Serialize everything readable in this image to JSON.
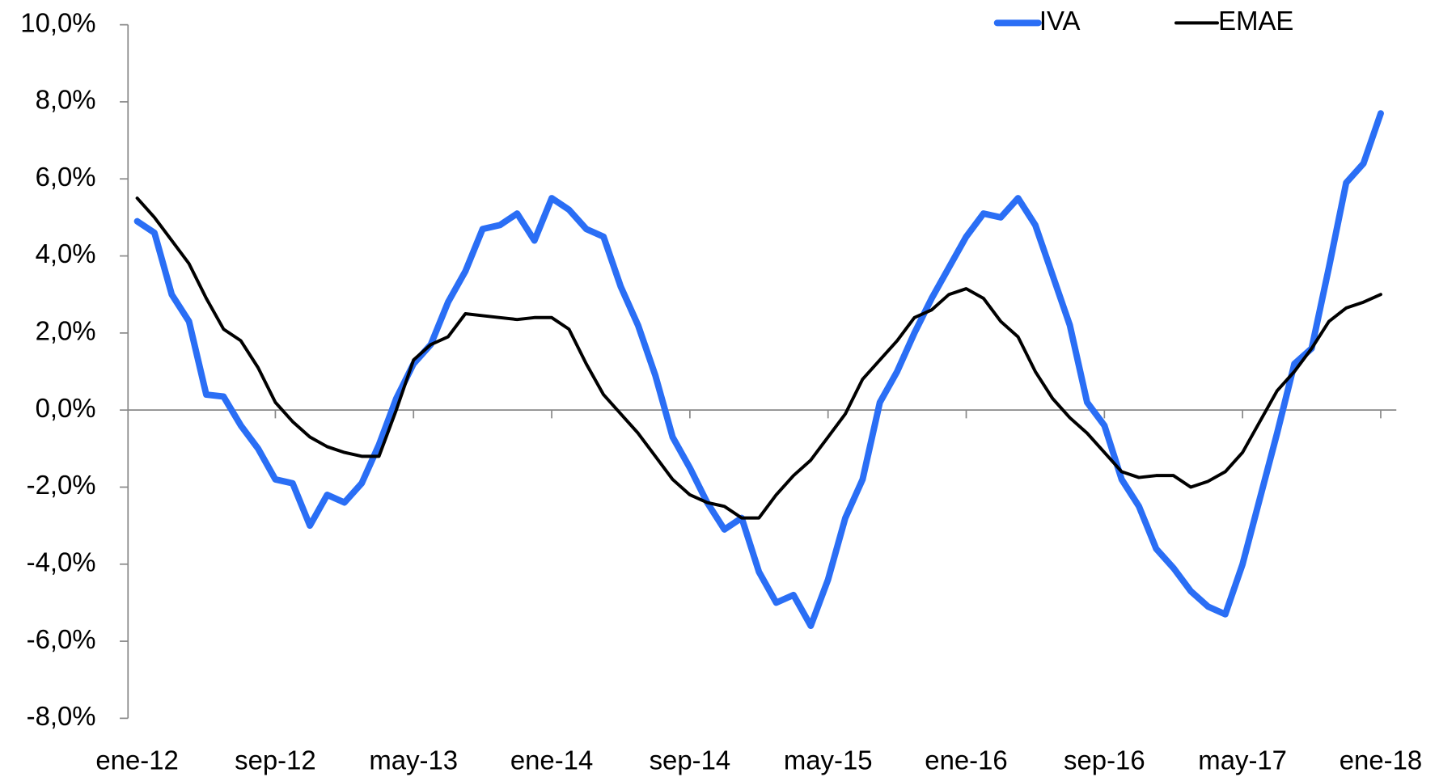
{
  "chart_data": {
    "type": "line",
    "categories": [
      "ene-12",
      null,
      null,
      null,
      null,
      null,
      null,
      null,
      "sep-12",
      null,
      null,
      null,
      null,
      null,
      null,
      null,
      "may-13",
      null,
      null,
      null,
      null,
      null,
      null,
      null,
      "ene-14",
      null,
      null,
      null,
      null,
      null,
      null,
      null,
      "sep-14",
      null,
      null,
      null,
      null,
      null,
      null,
      null,
      "may-15",
      null,
      null,
      null,
      null,
      null,
      null,
      null,
      "ene-16",
      null,
      null,
      null,
      null,
      null,
      null,
      null,
      "sep-16",
      null,
      null,
      null,
      null,
      null,
      null,
      null,
      "may-17",
      null,
      null,
      null,
      null,
      null,
      null,
      null,
      "ene-18"
    ],
    "series": [
      {
        "name": "IVA",
        "color": "#2a6ef5",
        "values": [
          4.9,
          4.6,
          3.0,
          2.3,
          0.4,
          0.35,
          -0.4,
          -1.0,
          -1.8,
          -1.9,
          -3.0,
          -2.2,
          -2.4,
          -1.9,
          -0.9,
          0.3,
          1.2,
          1.7,
          2.8,
          3.6,
          4.7,
          4.8,
          5.1,
          4.4,
          5.5,
          5.2,
          4.7,
          4.5,
          3.2,
          2.2,
          0.9,
          -0.7,
          -1.5,
          -2.4,
          -3.1,
          -2.8,
          -4.2,
          -5.0,
          -4.8,
          -5.6,
          -4.4,
          -2.8,
          -1.8,
          0.2,
          1.0,
          2.0,
          2.9,
          3.7,
          4.5,
          5.1,
          5.0,
          5.5,
          4.8,
          3.5,
          2.2,
          0.2,
          -0.4,
          -1.8,
          -2.5,
          -3.6,
          -4.1,
          -4.7,
          -5.1,
          -5.3,
          -4.0,
          -2.3,
          -0.6,
          1.2,
          1.6,
          3.7,
          5.9,
          6.4,
          7.7
        ]
      },
      {
        "name": "EMAE",
        "color": "#000000",
        "values": [
          5.5,
          5.0,
          4.4,
          3.8,
          2.9,
          2.1,
          1.8,
          1.1,
          0.2,
          -0.3,
          -0.7,
          -0.95,
          -1.1,
          -1.2,
          -1.2,
          0.0,
          1.3,
          1.7,
          1.9,
          2.5,
          2.45,
          2.4,
          2.35,
          2.4,
          2.4,
          2.1,
          1.2,
          0.4,
          -0.1,
          -0.6,
          -1.2,
          -1.8,
          -2.2,
          -2.4,
          -2.5,
          -2.8,
          -2.8,
          -2.2,
          -1.7,
          -1.3,
          -0.7,
          -0.1,
          0.8,
          1.3,
          1.8,
          2.4,
          2.6,
          3.0,
          3.15,
          2.9,
          2.3,
          1.9,
          1.0,
          0.3,
          -0.2,
          -0.6,
          -1.1,
          -1.6,
          -1.75,
          -1.7,
          -1.7,
          -2.0,
          -1.85,
          -1.6,
          -1.1,
          -0.3,
          0.5,
          1.0,
          1.6,
          2.3,
          2.65,
          2.8,
          3.0
        ]
      }
    ],
    "ylim": [
      -8,
      10
    ],
    "yticks": [
      {
        "value": -8,
        "label": "-8,0%"
      },
      {
        "value": -6,
        "label": "-6,0%"
      },
      {
        "value": -4,
        "label": "-4,0%"
      },
      {
        "value": -2,
        "label": "-2,0%"
      },
      {
        "value": 0,
        "label": "0,0%"
      },
      {
        "value": 2,
        "label": "2,0%"
      },
      {
        "value": 4,
        "label": "4,0%"
      },
      {
        "value": 6,
        "label": "6,0%"
      },
      {
        "value": 8,
        "label": "8,0%"
      },
      {
        "value": 10,
        "label": "10,0%"
      }
    ],
    "legend": "top-right"
  }
}
